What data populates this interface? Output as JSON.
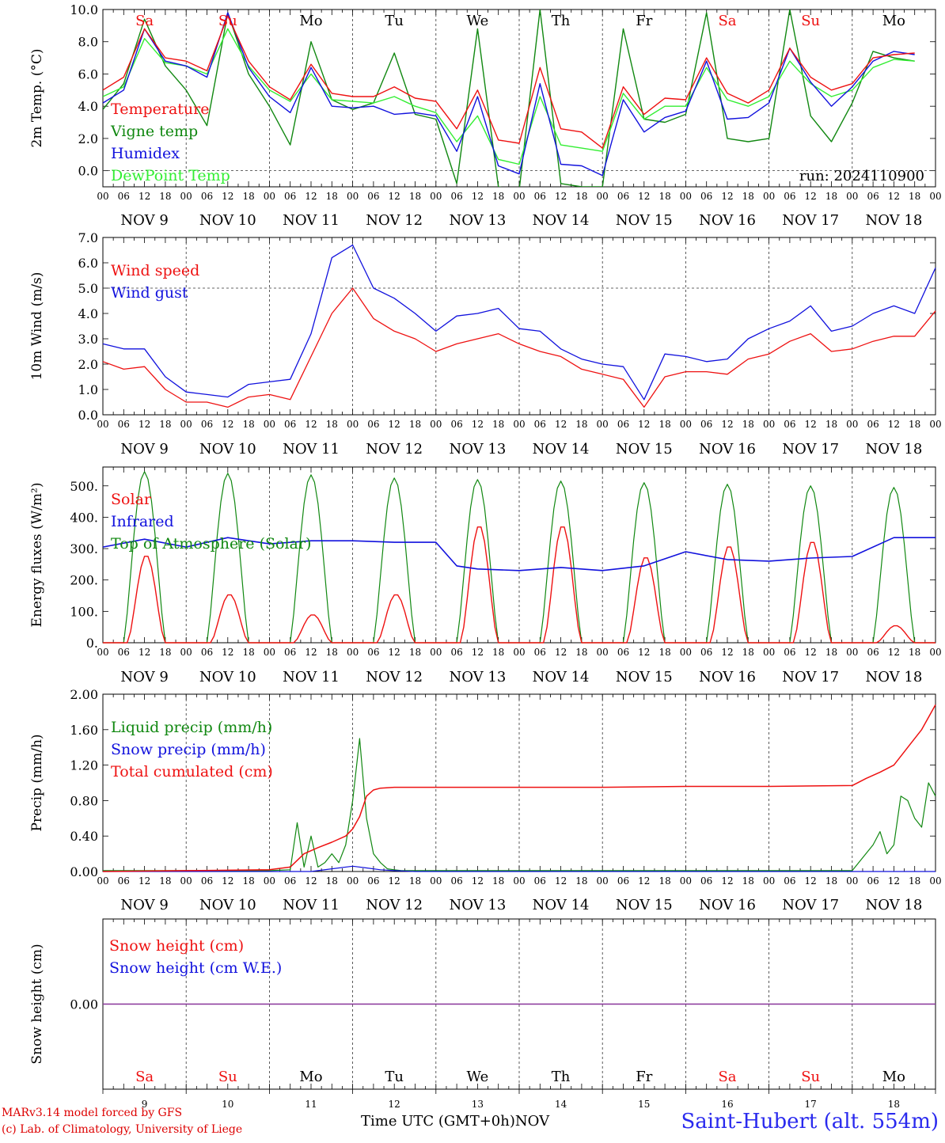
{
  "meta": {
    "credit_line1": "MARv3.14 model forced by GFS",
    "credit_line2": "(c) Lab. of Climatology, University of Liege",
    "station": "Saint-Hubert (alt. 554m)",
    "time_axis_label": "Time UTC (GMT+0h)",
    "month_label": "NOV",
    "run_label": "run: 2024110900"
  },
  "time_axis": {
    "hour_ticks": [
      "00",
      "06",
      "12",
      "18"
    ],
    "end_tick": "00",
    "dates": [
      "NOV  9",
      "NOV 10",
      "NOV 11",
      "NOV 12",
      "NOV 13",
      "NOV 14",
      "NOV 15",
      "NOV 16",
      "NOV 17",
      "NOV 18"
    ],
    "weekdays": [
      "Sa",
      "Su",
      "Mo",
      "Tu",
      "We",
      "Th",
      "Fr",
      "Sa",
      "Su",
      "Mo"
    ],
    "weekend": [
      true,
      true,
      false,
      false,
      false,
      false,
      false,
      true,
      true,
      false
    ],
    "day_numbers": [
      "9",
      "10",
      "11",
      "12",
      "13",
      "14",
      "15",
      "16",
      "17",
      "18"
    ]
  },
  "colors": {
    "red": "#ee1111",
    "green": "#118811",
    "blue": "#1111dd",
    "lightgreen": "#33ee33",
    "purple": "#883399",
    "weekday": "#000000",
    "weekend": "#ee1111"
  },
  "chart_data": [
    {
      "type": "line",
      "id": "temp",
      "ylabel": "2m Temp. (°C)",
      "ylim": [
        -1,
        10
      ],
      "yticks": [
        0,
        2,
        4,
        6,
        8,
        10
      ],
      "ytick_labels": [
        "0.0",
        "2.0",
        "4.0",
        "6.0",
        "8.0",
        "10.0"
      ],
      "ref_line": 0,
      "x_unit": "hours since NOV 9 00 UTC",
      "legend": [
        "Temperature",
        "Vigne temp",
        "Humidex",
        "DewPoint Temp"
      ],
      "series": [
        {
          "name": "Temperature",
          "color": "red",
          "x": [
            0,
            6,
            12,
            18,
            24,
            30,
            36,
            42,
            48,
            54,
            60,
            66,
            72,
            78,
            84,
            90,
            96,
            102,
            108,
            114,
            120,
            126,
            132,
            138,
            144,
            150,
            156,
            162,
            168,
            174,
            180,
            186,
            192,
            198,
            204,
            210,
            216,
            222,
            228,
            234
          ],
          "y": [
            5.0,
            5.8,
            8.8,
            7.0,
            6.8,
            6.2,
            9.6,
            6.8,
            5.2,
            4.4,
            6.6,
            4.8,
            4.6,
            4.6,
            5.2,
            4.5,
            4.3,
            2.6,
            5.0,
            1.9,
            1.7,
            6.4,
            2.6,
            2.4,
            1.4,
            5.2,
            3.5,
            4.5,
            4.4,
            7.0,
            4.8,
            4.2,
            5.0,
            7.6,
            5.8,
            5.0,
            5.4,
            7.0,
            7.2,
            7.3
          ]
        },
        {
          "name": "Vigne temp",
          "color": "green",
          "x": [
            0,
            6,
            12,
            18,
            24,
            30,
            36,
            42,
            48,
            54,
            60,
            66,
            72,
            78,
            84,
            90,
            96,
            102,
            108,
            114,
            120,
            126,
            132,
            138,
            144,
            150,
            156,
            162,
            168,
            174,
            180,
            186,
            192,
            198,
            204,
            210,
            216,
            222,
            228,
            234
          ],
          "y": [
            3.8,
            5.4,
            9.4,
            6.5,
            5.0,
            2.8,
            9.8,
            6.0,
            4.0,
            1.6,
            8.0,
            4.4,
            3.8,
            4.2,
            7.3,
            3.5,
            3.2,
            -0.8,
            8.8,
            -1.0,
            -1.2,
            10.0,
            -0.8,
            -1.0,
            -1.0,
            8.8,
            3.2,
            3.0,
            3.5,
            9.8,
            2.0,
            1.8,
            2.0,
            10.0,
            3.4,
            1.8,
            4.2,
            7.4,
            7.0,
            6.8
          ]
        },
        {
          "name": "Humidex",
          "color": "blue",
          "x": [
            0,
            6,
            12,
            18,
            24,
            30,
            36,
            42,
            48,
            54,
            60,
            66,
            72,
            78,
            84,
            90,
            96,
            102,
            108,
            114,
            120,
            126,
            132,
            138,
            144,
            150,
            156,
            162,
            168,
            174,
            180,
            186,
            192,
            198,
            204,
            210,
            216,
            222,
            228,
            234
          ],
          "y": [
            4.2,
            5.0,
            8.8,
            6.8,
            6.5,
            5.8,
            9.8,
            6.4,
            4.6,
            3.6,
            6.4,
            4.0,
            3.9,
            4.0,
            3.5,
            3.6,
            3.4,
            1.2,
            4.6,
            0.3,
            -0.2,
            5.4,
            0.4,
            0.3,
            -0.3,
            4.4,
            2.4,
            3.3,
            3.7,
            6.8,
            3.2,
            3.3,
            4.2,
            7.6,
            5.5,
            4.0,
            5.2,
            6.8,
            7.4,
            7.2
          ]
        },
        {
          "name": "DewPoint Temp",
          "color": "lightgreen",
          "x": [
            0,
            6,
            12,
            18,
            24,
            30,
            36,
            42,
            48,
            54,
            60,
            66,
            72,
            78,
            84,
            90,
            96,
            102,
            108,
            114,
            120,
            126,
            132,
            138,
            144,
            150,
            156,
            162,
            168,
            174,
            180,
            186,
            192,
            198,
            204,
            210,
            216,
            222,
            228,
            234
          ],
          "y": [
            4.6,
            5.2,
            8.2,
            6.7,
            6.5,
            6.0,
            8.8,
            6.5,
            5.0,
            4.3,
            6.0,
            4.4,
            4.3,
            4.2,
            4.6,
            4.0,
            3.6,
            1.8,
            3.4,
            0.7,
            0.4,
            4.6,
            1.6,
            1.4,
            1.2,
            4.8,
            3.2,
            4.0,
            4.0,
            6.4,
            4.4,
            4.0,
            4.6,
            6.8,
            5.4,
            4.6,
            5.0,
            6.4,
            6.9,
            6.8
          ]
        }
      ]
    },
    {
      "type": "line",
      "id": "wind",
      "ylabel": "10m Wind (m/s)",
      "ylim": [
        0,
        7
      ],
      "yticks": [
        0,
        1,
        2,
        3,
        4,
        5,
        6,
        7
      ],
      "ytick_labels": [
        "0.0",
        "1.0",
        "2.0",
        "3.0",
        "4.0",
        "5.0",
        "6.0",
        "7.0"
      ],
      "ref_line": 5,
      "legend": [
        "Wind speed",
        "Wind gust"
      ],
      "series": [
        {
          "name": "Wind speed",
          "color": "red",
          "x": [
            0,
            6,
            12,
            18,
            24,
            30,
            36,
            42,
            48,
            54,
            60,
            66,
            72,
            78,
            84,
            90,
            96,
            102,
            108,
            114,
            120,
            126,
            132,
            138,
            144,
            150,
            156,
            162,
            168,
            174,
            180,
            186,
            192,
            198,
            204,
            210,
            216,
            222,
            228,
            234,
            240
          ],
          "y": [
            2.1,
            1.8,
            1.9,
            1.0,
            0.5,
            0.5,
            0.3,
            0.7,
            0.8,
            0.6,
            2.3,
            4.0,
            5.0,
            3.8,
            3.3,
            3.0,
            2.5,
            2.8,
            3.0,
            3.2,
            2.8,
            2.5,
            2.3,
            1.8,
            1.6,
            1.4,
            0.3,
            1.5,
            1.7,
            1.7,
            1.6,
            2.2,
            2.4,
            2.9,
            3.2,
            2.5,
            2.6,
            2.9,
            3.1,
            3.1,
            4.1
          ]
        },
        {
          "name": "Wind gust",
          "color": "blue",
          "x": [
            0,
            6,
            12,
            18,
            24,
            30,
            36,
            42,
            48,
            54,
            60,
            66,
            72,
            78,
            84,
            90,
            96,
            102,
            108,
            114,
            120,
            126,
            132,
            138,
            144,
            150,
            156,
            162,
            168,
            174,
            180,
            186,
            192,
            198,
            204,
            210,
            216,
            222,
            228,
            234,
            240
          ],
          "y": [
            2.8,
            2.6,
            2.6,
            1.5,
            0.9,
            0.8,
            0.7,
            1.2,
            1.3,
            1.4,
            3.2,
            6.2,
            6.7,
            5.0,
            4.6,
            4.0,
            3.3,
            3.9,
            4.0,
            4.2,
            3.4,
            3.3,
            2.6,
            2.2,
            2.0,
            1.9,
            0.6,
            2.4,
            2.3,
            2.1,
            2.2,
            3.0,
            3.4,
            3.7,
            4.3,
            3.3,
            3.5,
            4.0,
            4.3,
            4.0,
            5.8
          ]
        }
      ]
    },
    {
      "type": "line",
      "id": "energy",
      "ylabel": "Energy fluxes (W/m²)",
      "ylim": [
        0,
        560
      ],
      "yticks": [
        0,
        100,
        200,
        300,
        400,
        500
      ],
      "ytick_labels": [
        "0.",
        "100.",
        "200.",
        "300.",
        "400.",
        "500."
      ],
      "legend": [
        "Solar",
        "Infrared",
        "Top of Atmosphere (Solar)"
      ],
      "solar_peaks": [
        280,
        155,
        90,
        155,
        375,
        375,
        275,
        310,
        325,
        55
      ],
      "toa_peaks": [
        545,
        540,
        535,
        525,
        520,
        515,
        510,
        505,
        500,
        495
      ],
      "infrared": {
        "x": [
          0,
          12,
          24,
          36,
          48,
          60,
          72,
          84,
          96,
          102,
          108,
          120,
          132,
          144,
          156,
          168,
          180,
          192,
          204,
          216,
          228,
          240
        ],
        "y": [
          305,
          330,
          305,
          335,
          315,
          325,
          325,
          320,
          320,
          245,
          235,
          230,
          240,
          230,
          245,
          290,
          265,
          260,
          270,
          275,
          335,
          335
        ]
      }
    },
    {
      "type": "line",
      "id": "precip",
      "ylabel": "Precip (mm/h)",
      "ylim": [
        0,
        2
      ],
      "yticks": [
        0,
        0.4,
        0.8,
        1.2,
        1.6,
        2.0
      ],
      "ytick_labels": [
        "0.00",
        "0.40",
        "0.80",
        "1.20",
        "1.60",
        "2.00"
      ],
      "legend": [
        "Liquid precip (mm/h)",
        "Snow precip (mm/h)",
        "Total cumulated (cm)"
      ],
      "series": [
        {
          "name": "Liquid precip (mm/h)",
          "color": "green",
          "x": [
            0,
            48,
            54,
            56,
            58,
            60,
            62,
            64,
            66,
            68,
            70,
            72,
            74,
            76,
            78,
            80,
            82,
            84,
            86,
            120,
            216,
            222,
            224,
            226,
            228,
            230,
            232,
            234,
            236,
            238,
            240
          ],
          "y": [
            0.01,
            0.01,
            0.02,
            0.55,
            0.05,
            0.4,
            0.05,
            0.1,
            0.2,
            0.1,
            0.3,
            0.8,
            1.5,
            0.6,
            0.2,
            0.1,
            0.03,
            0.02,
            0.01,
            0.01,
            0.01,
            0.3,
            0.45,
            0.2,
            0.3,
            0.85,
            0.8,
            0.6,
            0.5,
            1.0,
            0.85
          ]
        },
        {
          "name": "Snow precip (mm/h)",
          "color": "blue",
          "x": [
            0,
            60,
            66,
            72,
            76,
            80,
            84,
            90,
            240
          ],
          "y": [
            0.0,
            0.0,
            0.03,
            0.06,
            0.04,
            0.02,
            0.01,
            0.0,
            0.0
          ]
        },
        {
          "name": "Total cumulated (cm)",
          "color": "red",
          "x": [
            0,
            24,
            48,
            54,
            58,
            62,
            66,
            70,
            72,
            74,
            76,
            78,
            80,
            84,
            96,
            120,
            144,
            168,
            192,
            216,
            220,
            224,
            228,
            232,
            236,
            240
          ],
          "y": [
            0.0,
            0.01,
            0.02,
            0.05,
            0.2,
            0.27,
            0.33,
            0.4,
            0.48,
            0.62,
            0.85,
            0.92,
            0.94,
            0.95,
            0.95,
            0.95,
            0.95,
            0.96,
            0.96,
            0.97,
            1.05,
            1.12,
            1.2,
            1.4,
            1.6,
            1.88
          ]
        }
      ]
    },
    {
      "type": "line",
      "id": "snow",
      "ylabel": "Snow height (cm)",
      "ylim": [
        -1,
        1
      ],
      "yticks": [
        0
      ],
      "ytick_labels": [
        "0.00"
      ],
      "legend": [
        "Snow height (cm)",
        "Snow height (cm W.E.)"
      ],
      "series": [
        {
          "name": "Snow height (cm)",
          "color": "purple",
          "x": [
            0,
            240
          ],
          "y": [
            0,
            0
          ]
        }
      ]
    }
  ]
}
